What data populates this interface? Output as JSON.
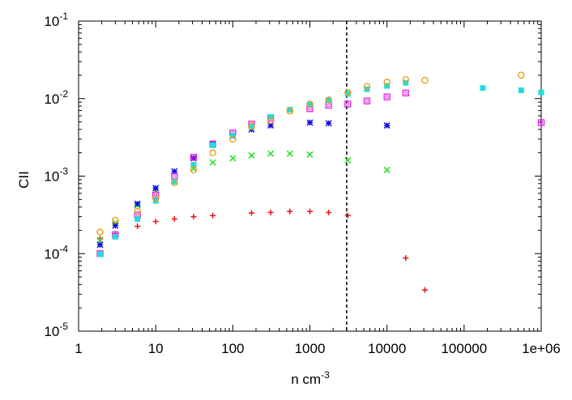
{
  "chart_data": {
    "type": "scatter",
    "xscale": "log",
    "yscale": "log",
    "xlim": [
      1,
      1000000
    ],
    "ylim": [
      1e-05,
      0.1
    ],
    "grid": false,
    "xlabel_base": "n cm",
    "xlabel_exp": "-3",
    "ylabel": "CII",
    "x_ticks": [
      {
        "value": 1,
        "label": "1"
      },
      {
        "value": 10,
        "label": "10"
      },
      {
        "value": 100,
        "label": "100"
      },
      {
        "value": 1000,
        "label": "1000"
      },
      {
        "value": 10000,
        "label": "10000"
      },
      {
        "value": 100000,
        "label": "100000"
      },
      {
        "value": 1000000,
        "label": "1e+06"
      }
    ],
    "y_ticks": [
      {
        "value": 1e-05,
        "base": "10",
        "exp": "-5"
      },
      {
        "value": 0.0001,
        "base": "10",
        "exp": "-4"
      },
      {
        "value": 0.001,
        "base": "10",
        "exp": "-3"
      },
      {
        "value": 0.01,
        "base": "10",
        "exp": "-2"
      },
      {
        "value": 0.1,
        "base": "10",
        "exp": "-1"
      }
    ],
    "vline": {
      "x": 3000,
      "style": "dashed",
      "color": "#000000"
    },
    "series": [
      {
        "marker": "plus",
        "color": "#ee1111",
        "points": [
          [
            1.9,
            0.000155
          ],
          [
            3,
            0.00018
          ],
          [
            5.8,
            0.000225
          ],
          [
            10,
            0.00026
          ],
          [
            17.5,
            0.00028
          ],
          [
            31,
            0.0003
          ],
          [
            55,
            0.00031
          ],
          [
            175,
            0.000335
          ],
          [
            310,
            0.00034
          ],
          [
            550,
            0.00035
          ],
          [
            1000,
            0.00035
          ],
          [
            1750,
            0.00034
          ],
          [
            3100,
            0.00031
          ],
          [
            17500,
            8.8e-05
          ],
          [
            31000,
            3.4e-05
          ]
        ]
      },
      {
        "marker": "x",
        "color": "#22dd22",
        "points": [
          [
            1.9,
            0.00015
          ],
          [
            3,
            0.00025
          ],
          [
            5.8,
            0.00042
          ],
          [
            10,
            0.00065
          ],
          [
            17.5,
            0.00085
          ],
          [
            31,
            0.00125
          ],
          [
            55,
            0.0015
          ],
          [
            100,
            0.0017
          ],
          [
            175,
            0.00185
          ],
          [
            310,
            0.00195
          ],
          [
            550,
            0.00195
          ],
          [
            1000,
            0.0019
          ],
          [
            3100,
            0.0016
          ],
          [
            10000,
            0.0012
          ]
        ]
      },
      {
        "marker": "asterisk",
        "color": "#1111dd",
        "points": [
          [
            1.9,
            0.00013
          ],
          [
            3,
            0.00023
          ],
          [
            5.8,
            0.00044
          ],
          [
            10,
            0.0007
          ],
          [
            17.5,
            0.00115
          ],
          [
            31,
            0.0017
          ],
          [
            55,
            0.0026
          ],
          [
            100,
            0.0033
          ],
          [
            175,
            0.004
          ],
          [
            310,
            0.0045
          ],
          [
            1000,
            0.0049
          ],
          [
            1750,
            0.0048
          ],
          [
            10000,
            0.0045
          ]
        ]
      },
      {
        "marker": "open-square",
        "color": "#dd22dd",
        "points": [
          [
            1.9,
            0.0001
          ],
          [
            3,
            0.000175
          ],
          [
            5.8,
            0.000315
          ],
          [
            10,
            0.00057
          ],
          [
            17.5,
            0.001
          ],
          [
            31,
            0.00175
          ],
          [
            55,
            0.0026
          ],
          [
            100,
            0.0036
          ],
          [
            175,
            0.0047
          ],
          [
            310,
            0.0056
          ],
          [
            1000,
            0.0074
          ],
          [
            1750,
            0.0082
          ],
          [
            3100,
            0.0085
          ],
          [
            5500,
            0.0093
          ],
          [
            10000,
            0.0105
          ],
          [
            17500,
            0.0118
          ],
          [
            1000000,
            0.0049
          ]
        ]
      },
      {
        "marker": "filled-square",
        "color": "#22dddd",
        "points": [
          [
            1.9,
            9.8e-05
          ],
          [
            3,
            0.000165
          ],
          [
            5.8,
            0.00028
          ],
          [
            10,
            0.00048
          ],
          [
            17.5,
            0.00085
          ],
          [
            31,
            0.0014
          ],
          [
            55,
            0.0025
          ],
          [
            100,
            0.0033
          ],
          [
            175,
            0.0043
          ],
          [
            310,
            0.0058
          ],
          [
            550,
            0.0072
          ],
          [
            1000,
            0.0083
          ],
          [
            1750,
            0.0095
          ],
          [
            3100,
            0.0115
          ],
          [
            5500,
            0.0132
          ],
          [
            10000,
            0.0146
          ],
          [
            17500,
            0.016
          ],
          [
            175000,
            0.0137
          ],
          [
            550000,
            0.0128
          ],
          [
            1000000,
            0.012
          ]
        ]
      },
      {
        "marker": "open-circle",
        "color": "#ee9911",
        "points": [
          [
            1.9,
            0.00019
          ],
          [
            3,
            0.00027
          ],
          [
            5.8,
            0.00035
          ],
          [
            10,
            0.00052
          ],
          [
            17.5,
            0.00082
          ],
          [
            31,
            0.0012
          ],
          [
            55,
            0.002
          ],
          [
            100,
            0.003
          ],
          [
            175,
            0.0044
          ],
          [
            310,
            0.0052
          ],
          [
            550,
            0.0069
          ],
          [
            1000,
            0.0085
          ],
          [
            1750,
            0.0096
          ],
          [
            3100,
            0.012
          ],
          [
            5500,
            0.0143
          ],
          [
            10000,
            0.0163
          ],
          [
            17500,
            0.0176
          ],
          [
            31000,
            0.0172
          ],
          [
            550000,
            0.0201
          ]
        ]
      }
    ]
  }
}
